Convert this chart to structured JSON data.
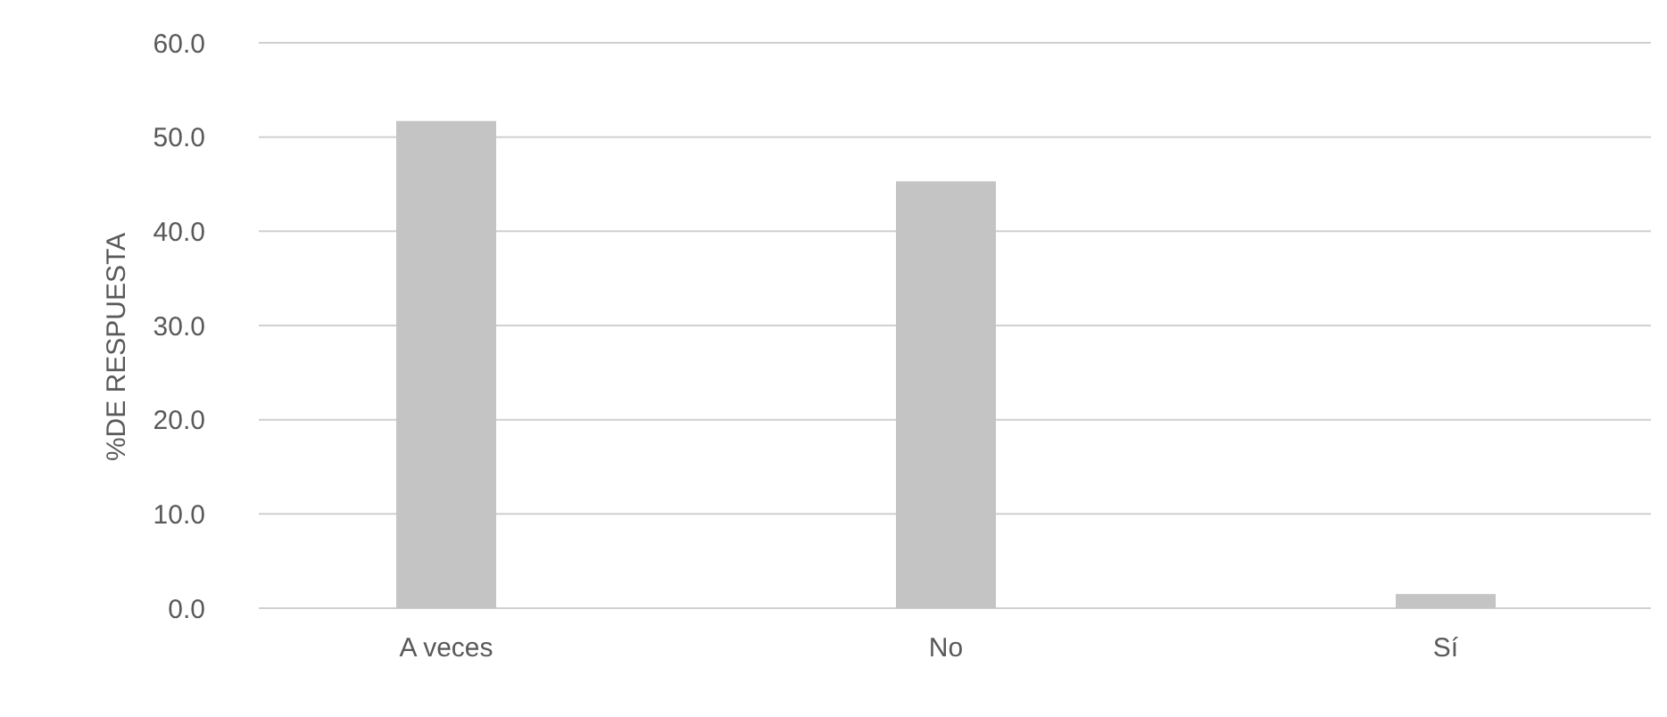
{
  "chart_data": {
    "type": "bar",
    "ylabel": "%DE RESPUESTA",
    "categories": [
      "A veces",
      "No",
      "Sí"
    ],
    "values": [
      51.7,
      45.3,
      1.5
    ],
    "color": "#c4c4c4",
    "ylim": [
      0,
      60
    ],
    "yticks": [
      {
        "value": 0,
        "label": "0.0"
      },
      {
        "value": 10,
        "label": "10.0"
      },
      {
        "value": 20,
        "label": "20.0"
      },
      {
        "value": 30,
        "label": "30.0"
      },
      {
        "value": 40,
        "label": "40.0"
      },
      {
        "value": 50,
        "label": "50.0"
      },
      {
        "value": 60,
        "label": "60.0"
      }
    ],
    "grid": "y"
  }
}
